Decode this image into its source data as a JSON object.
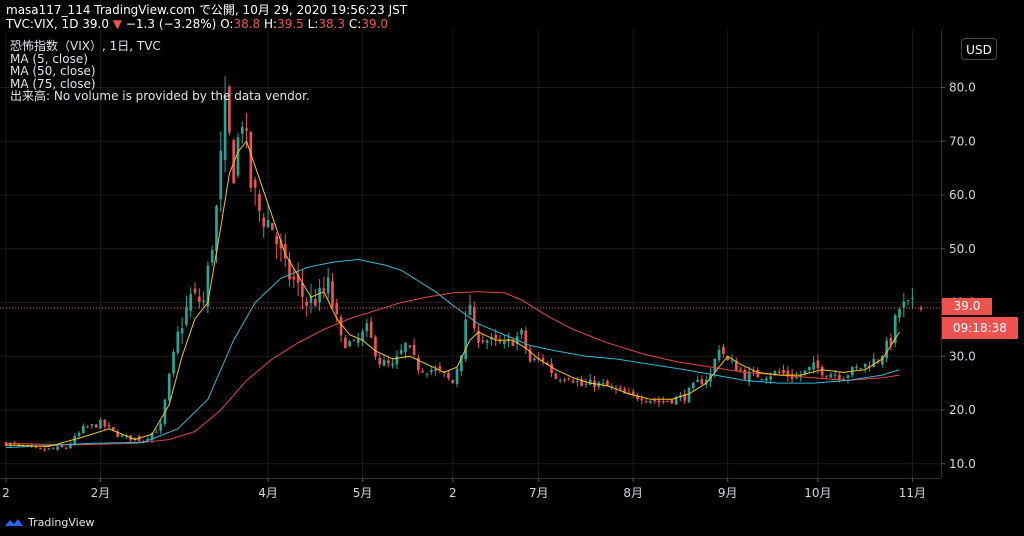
{
  "header": {
    "line1": "masa117_114 TradingView.com で公開, 10月 29, 2020 19:56:23 JST",
    "symbol": "TVC:VIX, 1D 39.0",
    "change": "−1.3 (−3.28%)",
    "o_label": "O:",
    "o_value": "38.8",
    "h_label": "H:",
    "h_value": "39.5",
    "l_label": "L:",
    "l_value": "38.3",
    "c_label": "C:",
    "c_value": "39.0"
  },
  "legend": {
    "title": "恐怖指数（VIX）, 1日, TVC",
    "ma5": "MA (5, close)",
    "ma50": "MA (50, close)",
    "ma75": "MA (75, close)",
    "volume": "出来高: No volume is provided by the data vendor."
  },
  "price_axis": {
    "currency_label": "USD",
    "last_price": "39.0",
    "countdown": "09:18:38"
  },
  "branding": {
    "label": "TradingView"
  },
  "colors": {
    "up": "#26a69a",
    "down": "#ef5350",
    "ma5": "#f5c518",
    "ma50": "#2bbbd8",
    "ma75": "#e8453c",
    "grid": "#1a1a1a",
    "background": "#000000"
  },
  "chart_data": {
    "type": "candlestick",
    "y_ticks": [
      10,
      20,
      30,
      40,
      50,
      60,
      70,
      80
    ],
    "y_tick_labels": [
      "10.0",
      "20.0",
      "30.0",
      "40.0",
      "50.0",
      "60.0",
      "70.0",
      "80.0"
    ],
    "x_tick_labels": [
      "2",
      "2月",
      "4月",
      "5月",
      "2",
      "7月",
      "8月",
      "9月",
      "10月",
      "11月"
    ],
    "x_tick_days": [
      0,
      22,
      61,
      83,
      104,
      124,
      146,
      168,
      189,
      211
    ],
    "n_days": 214,
    "close_anchors": [
      [
        0,
        13.8
      ],
      [
        8,
        12.5
      ],
      [
        14,
        13.0
      ],
      [
        18,
        16.5
      ],
      [
        22,
        17.5
      ],
      [
        27,
        15.0
      ],
      [
        32,
        14.5
      ],
      [
        36,
        17.0
      ],
      [
        38,
        26.0
      ],
      [
        40,
        34.0
      ],
      [
        43,
        41.0
      ],
      [
        46,
        40.0
      ],
      [
        49,
        57.0
      ],
      [
        51,
        75.0
      ],
      [
        53,
        65.0
      ],
      [
        55,
        75.0
      ],
      [
        57,
        62.0
      ],
      [
        59,
        57.0
      ],
      [
        62,
        54.0
      ],
      [
        65,
        46.0
      ],
      [
        67,
        44.0
      ],
      [
        70,
        40.0
      ],
      [
        73,
        41.0
      ],
      [
        75,
        43.0
      ],
      [
        78,
        33.0
      ],
      [
        81,
        32.0
      ],
      [
        84,
        35.0
      ],
      [
        87,
        29.0
      ],
      [
        90,
        28.0
      ],
      [
        93,
        32.0
      ],
      [
        96,
        28.0
      ],
      [
        99,
        27.5
      ],
      [
        101,
        27.0
      ],
      [
        104,
        25.0
      ],
      [
        106,
        31.0
      ],
      [
        108,
        40.0
      ],
      [
        109,
        34.0
      ],
      [
        112,
        33.0
      ],
      [
        116,
        32.0
      ],
      [
        120,
        34.0
      ],
      [
        122,
        29.0
      ],
      [
        125,
        29.5
      ],
      [
        128,
        26.0
      ],
      [
        131,
        26.5
      ],
      [
        134,
        24.5
      ],
      [
        137,
        25.0
      ],
      [
        141,
        24.0
      ],
      [
        145,
        22.5
      ],
      [
        148,
        22.5
      ],
      [
        152,
        21.5
      ],
      [
        155,
        22.0
      ],
      [
        158,
        22.5
      ],
      [
        161,
        25.0
      ],
      [
        164,
        26.5
      ],
      [
        166,
        32.0
      ],
      [
        168,
        29.0
      ],
      [
        170,
        28.0
      ],
      [
        172,
        26.5
      ],
      [
        176,
        26.5
      ],
      [
        180,
        27.0
      ],
      [
        184,
        26.0
      ],
      [
        188,
        28.0
      ],
      [
        191,
        27.0
      ],
      [
        195,
        26.5
      ],
      [
        199,
        28.0
      ],
      [
        203,
        29.5
      ],
      [
        206,
        33.0
      ],
      [
        208,
        39.0
      ]
    ],
    "ma5_anchors": [
      [
        0,
        13.5
      ],
      [
        10,
        13.2
      ],
      [
        18,
        15.0
      ],
      [
        24,
        16.5
      ],
      [
        30,
        14.5
      ],
      [
        34,
        15.5
      ],
      [
        38,
        21.0
      ],
      [
        41,
        30.0
      ],
      [
        44,
        37.0
      ],
      [
        47,
        40.0
      ],
      [
        50,
        54.0
      ],
      [
        52,
        64.0
      ],
      [
        54,
        68.0
      ],
      [
        56,
        70.0
      ],
      [
        59,
        63.0
      ],
      [
        62,
        56.0
      ],
      [
        65,
        49.0
      ],
      [
        68,
        45.0
      ],
      [
        71,
        41.0
      ],
      [
        74,
        42.0
      ],
      [
        77,
        37.0
      ],
      [
        80,
        34.0
      ],
      [
        83,
        33.0
      ],
      [
        86,
        31.0
      ],
      [
        90,
        29.5
      ],
      [
        94,
        30.0
      ],
      [
        98,
        28.5
      ],
      [
        102,
        27.0
      ],
      [
        105,
        28.0
      ],
      [
        108,
        33.0
      ],
      [
        110,
        34.5
      ],
      [
        114,
        33.0
      ],
      [
        118,
        33.0
      ],
      [
        121,
        31.5
      ],
      [
        124,
        29.5
      ],
      [
        128,
        27.5
      ],
      [
        132,
        26.0
      ],
      [
        136,
        25.0
      ],
      [
        140,
        24.5
      ],
      [
        145,
        23.0
      ],
      [
        150,
        22.0
      ],
      [
        155,
        22.0
      ],
      [
        159,
        23.0
      ],
      [
        163,
        25.0
      ],
      [
        166,
        28.0
      ],
      [
        168,
        30.0
      ],
      [
        171,
        28.5
      ],
      [
        175,
        27.0
      ],
      [
        180,
        26.5
      ],
      [
        185,
        26.5
      ],
      [
        190,
        27.5
      ],
      [
        195,
        27.0
      ],
      [
        200,
        27.5
      ],
      [
        204,
        29.5
      ],
      [
        208,
        34.5
      ]
    ],
    "ma50_anchors": [
      [
        0,
        13.0
      ],
      [
        20,
        13.8
      ],
      [
        32,
        14.0
      ],
      [
        40,
        16.5
      ],
      [
        47,
        22.0
      ],
      [
        53,
        33.0
      ],
      [
        58,
        40.0
      ],
      [
        64,
        44.5
      ],
      [
        70,
        46.5
      ],
      [
        76,
        47.5
      ],
      [
        82,
        48.0
      ],
      [
        88,
        47.0
      ],
      [
        92,
        46.0
      ],
      [
        96,
        44.0
      ],
      [
        100,
        42.0
      ],
      [
        104,
        39.5
      ],
      [
        110,
        36.0
      ],
      [
        116,
        34.0
      ],
      [
        122,
        32.0
      ],
      [
        128,
        31.0
      ],
      [
        135,
        30.0
      ],
      [
        142,
        29.5
      ],
      [
        150,
        28.5
      ],
      [
        158,
        27.5
      ],
      [
        165,
        26.5
      ],
      [
        172,
        25.5
      ],
      [
        180,
        25.0
      ],
      [
        188,
        25.0
      ],
      [
        196,
        25.5
      ],
      [
        204,
        26.5
      ],
      [
        208,
        27.5
      ]
    ],
    "ma75_anchors": [
      [
        0,
        13.8
      ],
      [
        15,
        13.5
      ],
      [
        30,
        13.8
      ],
      [
        38,
        14.5
      ],
      [
        44,
        16.0
      ],
      [
        50,
        20.0
      ],
      [
        56,
        25.5
      ],
      [
        62,
        29.5
      ],
      [
        68,
        32.5
      ],
      [
        74,
        35.0
      ],
      [
        80,
        37.0
      ],
      [
        86,
        38.5
      ],
      [
        92,
        40.0
      ],
      [
        98,
        41.0
      ],
      [
        104,
        41.8
      ],
      [
        110,
        42.0
      ],
      [
        116,
        41.8
      ],
      [
        120,
        40.5
      ],
      [
        126,
        37.5
      ],
      [
        132,
        35.0
      ],
      [
        140,
        32.5
      ],
      [
        148,
        30.5
      ],
      [
        156,
        29.0
      ],
      [
        164,
        28.0
      ],
      [
        172,
        27.0
      ],
      [
        180,
        26.5
      ],
      [
        188,
        26.0
      ],
      [
        196,
        25.5
      ],
      [
        204,
        26.0
      ],
      [
        208,
        26.5
      ]
    ]
  }
}
